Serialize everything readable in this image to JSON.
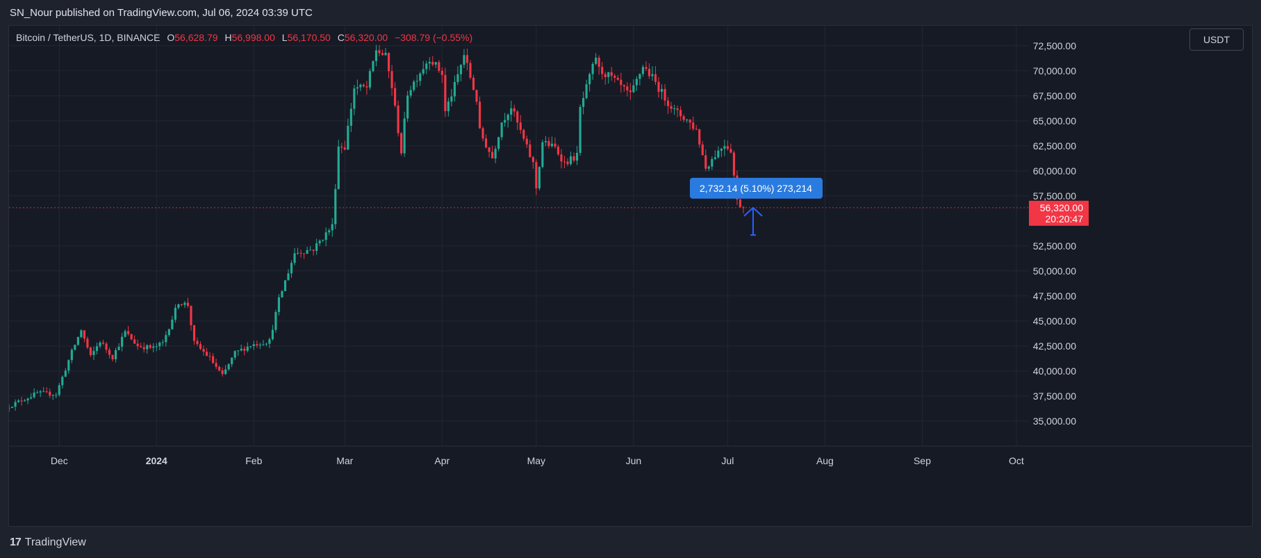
{
  "header": {
    "publish_line": "SN_Nour published on TradingView.com, Jul 06, 2024 03:39 UTC"
  },
  "legend": {
    "symbol": "Bitcoin / TetherUS, 1D, BINANCE",
    "o_label": "O",
    "o_value": "56,628.79",
    "h_label": "H",
    "h_value": "56,998.00",
    "l_label": "L",
    "l_value": "56,170.50",
    "c_label": "C",
    "c_value": "56,320.00",
    "change": "−308.79 (−0.55%)"
  },
  "currency_button": "USDT",
  "footer": {
    "brand_logo": "17",
    "brand_name": "TradingView"
  },
  "colors": {
    "up": "#22ab94",
    "down": "#f23645",
    "background": "#161a25",
    "measure": "#2962ff"
  },
  "chart_data": {
    "type": "candlestick",
    "x_labels": [
      "Dec",
      "2024",
      "Feb",
      "Mar",
      "Apr",
      "May",
      "Jun",
      "Jul",
      "Aug",
      "Sep",
      "Oct"
    ],
    "y_ticks": [
      "72,500.00",
      "70,000.00",
      "67,500.00",
      "65,000.00",
      "62,500.00",
      "60,000.00",
      "57,500.00",
      "52,500.00",
      "50,000.00",
      "47,500.00",
      "45,000.00",
      "42,500.00",
      "40,000.00",
      "37,500.00",
      "35,000.00"
    ],
    "y_tick_values": [
      72500,
      70000,
      67500,
      65000,
      62500,
      60000,
      57500,
      52500,
      50000,
      47500,
      45000,
      42500,
      40000,
      37500,
      35000
    ],
    "ylim": [
      32500,
      74500
    ],
    "xlim_dates": [
      "2023-11-15",
      "2024-10-05"
    ],
    "grid": true,
    "last_price": {
      "value": 56320,
      "label": "56,320.00",
      "countdown": "20:20:47"
    },
    "measure_tool": {
      "text": "2,732.14 (5.10%) 273,214",
      "from": 53588,
      "to": 56320
    },
    "price_path": [
      [
        "2023-11-15",
        36500
      ],
      [
        "2023-11-24",
        37800
      ],
      [
        "2023-11-30",
        37700
      ],
      [
        "2023-12-05",
        41900
      ],
      [
        "2023-12-08",
        44100
      ],
      [
        "2023-12-11",
        41400
      ],
      [
        "2023-12-14",
        43000
      ],
      [
        "2023-12-18",
        41400
      ],
      [
        "2023-12-22",
        43900
      ],
      [
        "2023-12-26",
        42500
      ],
      [
        "2023-12-31",
        42300
      ],
      [
        "2024-01-03",
        42800
      ],
      [
        "2024-01-08",
        46900
      ],
      [
        "2024-01-11",
        46600
      ],
      [
        "2024-01-13",
        42800
      ],
      [
        "2024-01-18",
        41300
      ],
      [
        "2024-01-22",
        39500
      ],
      [
        "2024-01-26",
        41800
      ],
      [
        "2024-01-31",
        42600
      ],
      [
        "2024-02-06",
        43000
      ],
      [
        "2024-02-09",
        47100
      ],
      [
        "2024-02-14",
        51800
      ],
      [
        "2024-02-20",
        52200
      ],
      [
        "2024-02-26",
        54500
      ],
      [
        "2024-02-28",
        62500
      ],
      [
        "2024-03-01",
        62400
      ],
      [
        "2024-03-04",
        68300
      ],
      [
        "2024-03-08",
        68300
      ],
      [
        "2024-03-11",
        72100
      ],
      [
        "2024-03-14",
        71400
      ],
      [
        "2024-03-16",
        68400
      ],
      [
        "2024-03-19",
        61900
      ],
      [
        "2024-03-21",
        67800
      ],
      [
        "2024-03-25",
        69900
      ],
      [
        "2024-03-28",
        71300
      ],
      [
        "2024-04-01",
        69700
      ],
      [
        "2024-04-02",
        65900
      ],
      [
        "2024-04-05",
        68500
      ],
      [
        "2024-04-08",
        71600
      ],
      [
        "2024-04-12",
        67100
      ],
      [
        "2024-04-13",
        63900
      ],
      [
        "2024-04-17",
        61300
      ],
      [
        "2024-04-20",
        64900
      ],
      [
        "2024-04-23",
        66400
      ],
      [
        "2024-04-27",
        63100
      ],
      [
        "2024-04-30",
        60700
      ],
      [
        "2024-05-01",
        58300
      ],
      [
        "2024-05-03",
        62900
      ],
      [
        "2024-05-07",
        62300
      ],
      [
        "2024-05-10",
        60800
      ],
      [
        "2024-05-14",
        61500
      ],
      [
        "2024-05-15",
        66200
      ],
      [
        "2024-05-20",
        71400
      ],
      [
        "2024-05-21",
        70100
      ],
      [
        "2024-05-25",
        69300
      ],
      [
        "2024-05-31",
        67500
      ],
      [
        "2024-06-04",
        70500
      ],
      [
        "2024-06-07",
        69300
      ],
      [
        "2024-06-11",
        67300
      ],
      [
        "2024-06-14",
        66000
      ],
      [
        "2024-06-18",
        65100
      ],
      [
        "2024-06-21",
        64100
      ],
      [
        "2024-06-24",
        60300
      ],
      [
        "2024-06-27",
        61600
      ],
      [
        "2024-06-30",
        62700
      ],
      [
        "2024-07-02",
        62100
      ],
      [
        "2024-07-04",
        57000
      ],
      [
        "2024-07-05",
        56600
      ],
      [
        "2024-07-06",
        56320
      ]
    ]
  }
}
